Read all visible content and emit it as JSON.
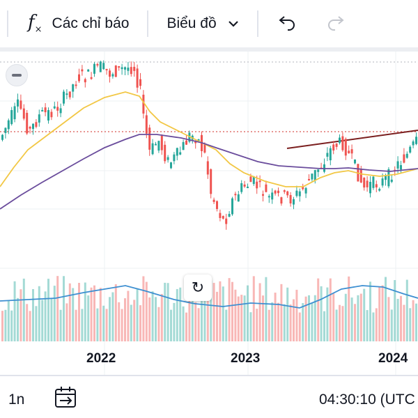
{
  "toolbar": {
    "indicators_label": "Các chỉ báo",
    "chart_type_label": "Biểu đồ",
    "indicators_icon": "function-icon",
    "dropdown_icon": "chevron-down-icon",
    "undo_icon": "undo-icon",
    "redo_icon": "redo-icon"
  },
  "colors": {
    "up": "#26a69a",
    "down": "#ef5350",
    "ma_fast": "#f2c744",
    "ma_slow": "#6a4c9c",
    "volume_ma": "#3d8fd1",
    "trendline": "#7b1f1f"
  },
  "chart_data": {
    "type": "candlestick",
    "x_axis_labels": [
      "2022",
      "2023",
      "2024"
    ],
    "series": [
      "price candles",
      "moving average (fast)",
      "moving average (slow)",
      "volume bars",
      "volume moving average"
    ],
    "annotations": [
      "trendline",
      "horizontal price level"
    ]
  },
  "bottombar": {
    "interval": "1n",
    "calendar_icon": "calendar-goto-icon",
    "clock": "04:30:10 (UTC"
  },
  "reset_icon": "reset-rotate-icon",
  "collapse_icon": "minus-icon"
}
